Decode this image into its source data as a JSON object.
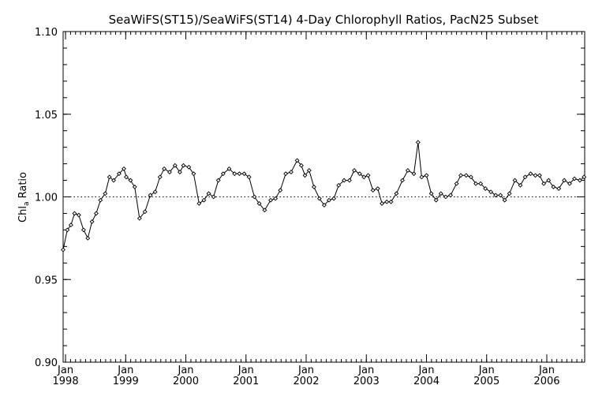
{
  "chart_data": {
    "type": "line",
    "title": "SeaWiFS(ST15)/SeaWiFS(ST14) 4-Day Chlorophyll Ratios, PacN25 Subset",
    "ylabel_main": "Chl",
    "ylabel_sub": "a",
    "ylabel_rest": " Ratio",
    "xlabel": "",
    "ylim": [
      0.9,
      1.1
    ],
    "y_ticks": [
      0.9,
      0.95,
      1.0,
      1.05,
      1.1
    ],
    "y_tick_labels": [
      "0.90",
      "0.95",
      "1.00",
      "1.05",
      "1.10"
    ],
    "xlim": [
      1997.96,
      2006.63
    ],
    "x_ticks": [
      {
        "x": 1998,
        "month": "Jan",
        "year": "1998"
      },
      {
        "x": 1999,
        "month": "Jan",
        "year": "1999"
      },
      {
        "x": 2000,
        "month": "Jan",
        "year": "2000"
      },
      {
        "x": 2001,
        "month": "Jan",
        "year": "2001"
      },
      {
        "x": 2002,
        "month": "Jan",
        "year": "2002"
      },
      {
        "x": 2003,
        "month": "Jan",
        "year": "2003"
      },
      {
        "x": 2004,
        "month": "Jan",
        "year": "2004"
      },
      {
        "x": 2005,
        "month": "Jan",
        "year": "2005"
      },
      {
        "x": 2006,
        "month": "Jan",
        "year": "2006"
      }
    ],
    "reference_line": 1.0,
    "series": [
      {
        "values": [
          [
            1997.96,
            0.968
          ],
          [
            1998.03,
            0.98
          ],
          [
            1998.09,
            0.983
          ],
          [
            1998.15,
            0.99
          ],
          [
            1998.22,
            0.989
          ],
          [
            1998.3,
            0.98
          ],
          [
            1998.37,
            0.975
          ],
          [
            1998.44,
            0.985
          ],
          [
            1998.51,
            0.99
          ],
          [
            1998.58,
            0.998
          ],
          [
            1998.66,
            1.002
          ],
          [
            1998.73,
            1.012
          ],
          [
            1998.8,
            1.01
          ],
          [
            1998.89,
            1.014
          ],
          [
            1998.97,
            1.017
          ],
          [
            1999.01,
            1.012
          ],
          [
            1999.08,
            1.01
          ],
          [
            1999.15,
            1.006
          ],
          [
            1999.23,
            0.987
          ],
          [
            1999.32,
            0.991
          ],
          [
            1999.41,
            1.001
          ],
          [
            1999.49,
            1.003
          ],
          [
            1999.57,
            1.012
          ],
          [
            1999.64,
            1.017
          ],
          [
            1999.73,
            1.015
          ],
          [
            1999.82,
            1.019
          ],
          [
            1999.9,
            1.015
          ],
          [
            1999.96,
            1.019
          ],
          [
            2000.05,
            1.018
          ],
          [
            2000.13,
            1.014
          ],
          [
            2000.22,
            0.996
          ],
          [
            2000.3,
            0.998
          ],
          [
            2000.38,
            1.002
          ],
          [
            2000.46,
            1.0
          ],
          [
            2000.54,
            1.01
          ],
          [
            2000.62,
            1.014
          ],
          [
            2000.72,
            1.017
          ],
          [
            2000.81,
            1.014
          ],
          [
            2000.89,
            1.014
          ],
          [
            2000.97,
            1.014
          ],
          [
            2001.05,
            1.012
          ],
          [
            2001.14,
            1.0
          ],
          [
            2001.22,
            0.996
          ],
          [
            2001.31,
            0.992
          ],
          [
            2001.41,
            0.998
          ],
          [
            2001.49,
            0.999
          ],
          [
            2001.57,
            1.004
          ],
          [
            2001.66,
            1.014
          ],
          [
            2001.75,
            1.015
          ],
          [
            2001.85,
            1.022
          ],
          [
            2001.92,
            1.019
          ],
          [
            2001.98,
            1.013
          ],
          [
            2002.05,
            1.016
          ],
          [
            2002.13,
            1.006
          ],
          [
            2002.22,
            0.999
          ],
          [
            2002.3,
            0.995
          ],
          [
            2002.38,
            0.998
          ],
          [
            2002.46,
            0.999
          ],
          [
            2002.54,
            1.007
          ],
          [
            2002.63,
            1.01
          ],
          [
            2002.72,
            1.01
          ],
          [
            2002.8,
            1.016
          ],
          [
            2002.89,
            1.014
          ],
          [
            2002.96,
            1.012
          ],
          [
            2003.03,
            1.013
          ],
          [
            2003.11,
            1.004
          ],
          [
            2003.19,
            1.005
          ],
          [
            2003.26,
            0.996
          ],
          [
            2003.34,
            0.997
          ],
          [
            2003.41,
            0.997
          ],
          [
            2003.5,
            1.002
          ],
          [
            2003.6,
            1.01
          ],
          [
            2003.69,
            1.016
          ],
          [
            2003.79,
            1.014
          ],
          [
            2003.86,
            1.033
          ],
          [
            2003.92,
            1.012
          ],
          [
            2004.0,
            1.013
          ],
          [
            2004.08,
            1.002
          ],
          [
            2004.16,
            0.998
          ],
          [
            2004.24,
            1.002
          ],
          [
            2004.32,
            1.0
          ],
          [
            2004.4,
            1.001
          ],
          [
            2004.5,
            1.008
          ],
          [
            2004.57,
            1.013
          ],
          [
            2004.66,
            1.013
          ],
          [
            2004.74,
            1.012
          ],
          [
            2004.82,
            1.008
          ],
          [
            2004.9,
            1.008
          ],
          [
            2004.98,
            1.005
          ],
          [
            2005.07,
            1.003
          ],
          [
            2005.15,
            1.001
          ],
          [
            2005.23,
            1.001
          ],
          [
            2005.3,
            0.998
          ],
          [
            2005.38,
            1.002
          ],
          [
            2005.47,
            1.01
          ],
          [
            2005.56,
            1.007
          ],
          [
            2005.64,
            1.012
          ],
          [
            2005.73,
            1.014
          ],
          [
            2005.81,
            1.013
          ],
          [
            2005.88,
            1.013
          ],
          [
            2005.95,
            1.008
          ],
          [
            2006.03,
            1.01
          ],
          [
            2006.11,
            1.006
          ],
          [
            2006.2,
            1.005
          ],
          [
            2006.29,
            1.01
          ],
          [
            2006.38,
            1.008
          ],
          [
            2006.46,
            1.011
          ],
          [
            2006.55,
            1.01
          ],
          [
            2006.62,
            1.012
          ]
        ]
      }
    ],
    "grid": false,
    "colors": {
      "line": "#000000",
      "axis": "#000000",
      "background": "#ffffff"
    }
  }
}
